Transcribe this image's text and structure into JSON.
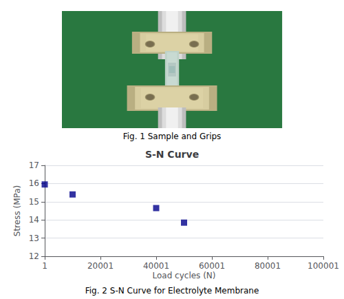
{
  "chart_data": {
    "type": "scatter",
    "title": "S-N Curve",
    "xlabel": "Load cycles (N)",
    "ylabel": "Stress (MPa)",
    "annotations": [
      "Fig. 1 Sample and Grips",
      "Fig. 2 S-N Curve for Electrolyte Membrane"
    ],
    "x": [
      1,
      10001,
      40001,
      50001
    ],
    "values": [
      15.95,
      15.4,
      14.65,
      13.85
    ],
    "color": "#00008B",
    "marker": "square",
    "xlim": [
      1,
      100001
    ],
    "xticks": [
      1,
      20001,
      40001,
      60001,
      80001,
      100001
    ],
    "ylim": [
      12,
      17
    ],
    "yticks": [
      12,
      13,
      14,
      15,
      16,
      17
    ],
    "grid": "y"
  }
}
